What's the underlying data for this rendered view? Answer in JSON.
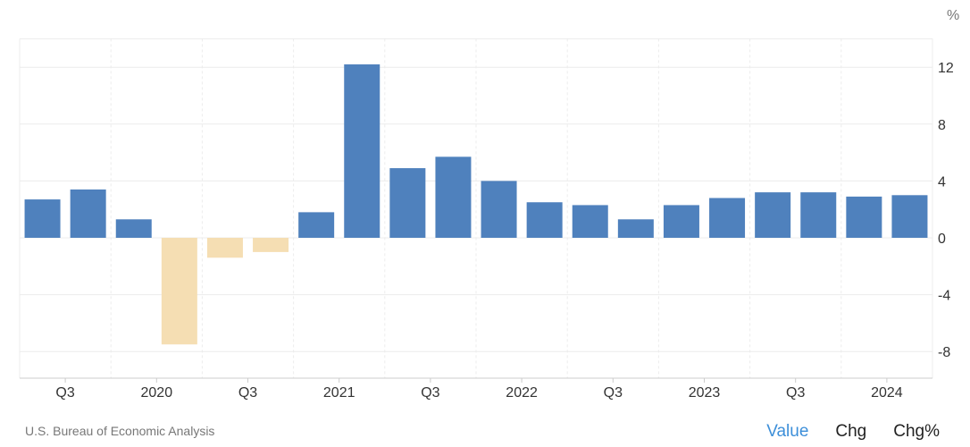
{
  "chart_data": {
    "type": "bar",
    "unit_label": "%",
    "ylim": [
      -9.5,
      14
    ],
    "yticks": [
      -8,
      -4,
      0,
      4,
      8,
      12
    ],
    "x_labels": [
      "Q3",
      "2020",
      "Q3",
      "2021",
      "Q3",
      "2022",
      "Q3",
      "2023",
      "Q3",
      "2024"
    ],
    "values": [
      2.7,
      3.4,
      1.3,
      -7.5,
      -1.4,
      -1.0,
      1.8,
      12.2,
      4.9,
      5.7,
      4.0,
      2.5,
      2.3,
      1.3,
      2.3,
      2.8,
      3.2,
      3.2,
      2.9,
      3.0
    ],
    "positive_color": "#4f81bd",
    "negative_color": "#f5deb3",
    "grid": true
  },
  "footer": {
    "source": "U.S. Bureau of Economic Analysis",
    "modes": [
      "Value",
      "Chg",
      "Chg%"
    ],
    "active_mode": "Value"
  }
}
